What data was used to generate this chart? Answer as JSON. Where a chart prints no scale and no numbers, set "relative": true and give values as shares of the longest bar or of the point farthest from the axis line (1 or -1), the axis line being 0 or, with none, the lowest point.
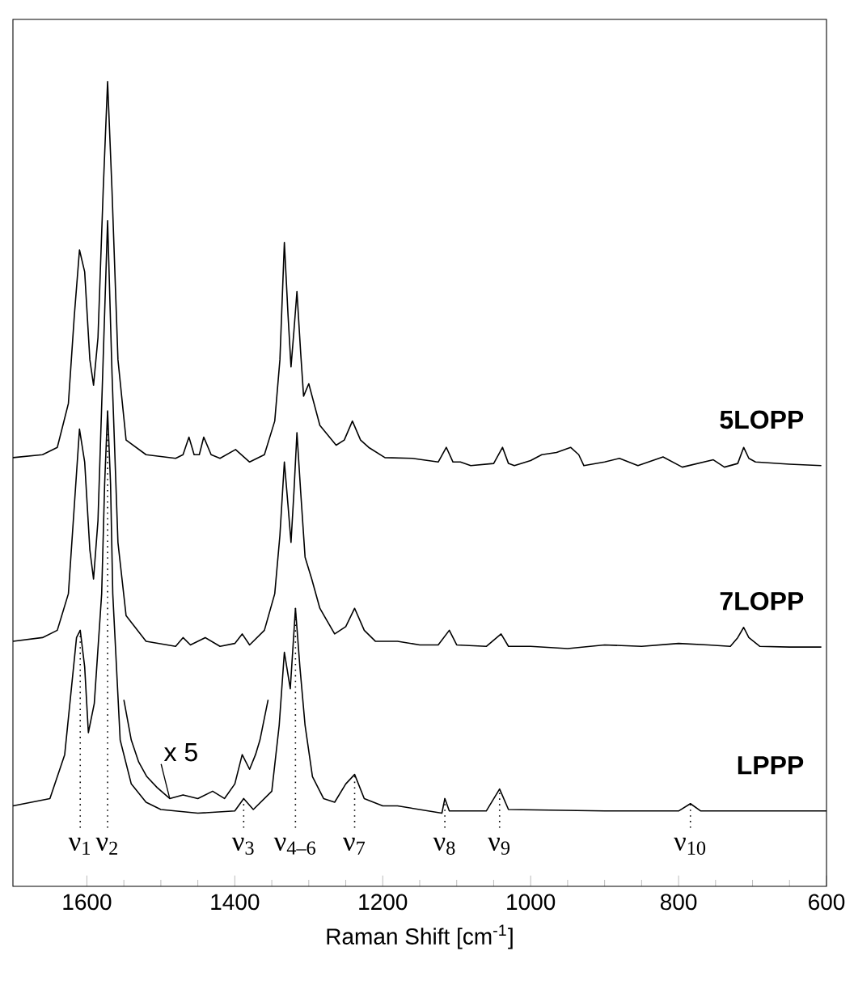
{
  "chart_data": {
    "type": "line",
    "relative": true,
    "xlabel": "Raman Shift [cm$^{-1}$]",
    "xlim": [
      1700,
      600
    ],
    "xticks": [
      1600,
      1400,
      1200,
      1000,
      800,
      600
    ],
    "series": [
      {
        "name": "5LOPP",
        "color": "#000000",
        "x": [
          1700,
          1660,
          1640,
          1625,
          1617,
          1610,
          1603,
          1596,
          1591,
          1585,
          1578,
          1572,
          1566,
          1558,
          1547,
          1520,
          1480,
          1470,
          1462,
          1455,
          1448,
          1442,
          1432,
          1420,
          1399,
          1380,
          1360,
          1346,
          1339,
          1333,
          1328,
          1324,
          1320,
          1316,
          1311,
          1307,
          1300,
          1285,
          1263,
          1252,
          1241,
          1230,
          1219,
          1197,
          1160,
          1125,
          1114,
          1105,
          1095,
          1081,
          1050,
          1038,
          1030,
          1022,
          1000,
          985,
          965,
          946,
          935,
          928,
          900,
          880,
          855,
          821,
          795,
          753,
          738,
          720,
          712,
          705,
          696,
          650,
          607
        ],
        "values": [
          0.486,
          0.49,
          0.5,
          0.56,
          0.68,
          0.77,
          0.74,
          0.62,
          0.585,
          0.65,
          0.85,
          1.0,
          0.85,
          0.62,
          0.51,
          0.49,
          0.485,
          0.49,
          0.514,
          0.49,
          0.49,
          0.514,
          0.49,
          0.485,
          0.497,
          0.48,
          0.49,
          0.536,
          0.62,
          0.78,
          0.68,
          0.61,
          0.66,
          0.713,
          0.63,
          0.57,
          0.587,
          0.53,
          0.503,
          0.51,
          0.536,
          0.51,
          0.5,
          0.486,
          0.485,
          0.48,
          0.5,
          0.48,
          0.48,
          0.475,
          0.478,
          0.5,
          0.478,
          0.475,
          0.482,
          0.49,
          0.493,
          0.5,
          0.49,
          0.475,
          0.48,
          0.485,
          0.475,
          0.487,
          0.473,
          0.483,
          0.473,
          0.478,
          0.5,
          0.485,
          0.48,
          0.477,
          0.475
        ]
      },
      {
        "name": "7LOPP",
        "color": "#000000",
        "x": [
          1700,
          1660,
          1640,
          1625,
          1617,
          1610,
          1603,
          1596,
          1591,
          1585,
          1578,
          1572,
          1566,
          1558,
          1547,
          1520,
          1480,
          1470,
          1460,
          1440,
          1420,
          1400,
          1390,
          1380,
          1360,
          1346,
          1339,
          1333,
          1328,
          1324,
          1320,
          1316,
          1311,
          1305,
          1296,
          1285,
          1265,
          1250,
          1238,
          1225,
          1210,
          1180,
          1150,
          1125,
          1110,
          1100,
          1060,
          1040,
          1030,
          1000,
          950,
          900,
          850,
          800,
          760,
          730,
          720,
          712,
          705,
          690,
          650,
          607
        ],
        "values": [
          0.235,
          0.24,
          0.25,
          0.3,
          0.42,
          0.525,
          0.48,
          0.36,
          0.32,
          0.4,
          0.62,
          0.81,
          0.6,
          0.37,
          0.27,
          0.235,
          0.228,
          0.24,
          0.23,
          0.24,
          0.228,
          0.232,
          0.245,
          0.23,
          0.25,
          0.3,
          0.38,
          0.48,
          0.42,
          0.37,
          0.44,
          0.52,
          0.44,
          0.35,
          0.32,
          0.28,
          0.245,
          0.255,
          0.28,
          0.25,
          0.235,
          0.235,
          0.23,
          0.23,
          0.25,
          0.23,
          0.228,
          0.245,
          0.228,
          0.228,
          0.225,
          0.23,
          0.228,
          0.232,
          0.23,
          0.228,
          0.24,
          0.254,
          0.24,
          0.228,
          0.227,
          0.227
        ]
      },
      {
        "name": "LPPP",
        "color": "#000000",
        "x": [
          1700,
          1650,
          1630,
          1620,
          1614,
          1609,
          1603,
          1598,
          1590,
          1580,
          1576,
          1572,
          1568,
          1565,
          1555,
          1540,
          1520,
          1500,
          1450,
          1400,
          1388,
          1375,
          1350,
          1340,
          1333,
          1325,
          1318,
          1312,
          1305,
          1295,
          1280,
          1265,
          1250,
          1238,
          1225,
          1200,
          1180,
          1120,
          1116,
          1110,
          1100,
          1060,
          1042,
          1030,
          900,
          800,
          784,
          770,
          700,
          600
        ],
        "values": [
          0.01,
          0.02,
          0.08,
          0.18,
          0.24,
          0.25,
          0.2,
          0.11,
          0.15,
          0.3,
          0.45,
          0.55,
          0.45,
          0.3,
          0.1,
          0.04,
          0.015,
          0.005,
          0.0,
          0.003,
          0.02,
          0.005,
          0.03,
          0.12,
          0.22,
          0.17,
          0.28,
          0.2,
          0.12,
          0.05,
          0.02,
          0.015,
          0.04,
          0.053,
          0.02,
          0.01,
          0.01,
          0.0,
          0.02,
          0.003,
          0.003,
          0.003,
          0.033,
          0.005,
          0.003,
          0.003,
          0.013,
          0.003,
          0.003,
          0.003
        ]
      },
      {
        "color": "#000000",
        "x": [
          1550,
          1540,
          1530,
          1519,
          1505,
          1488,
          1470,
          1450,
          1430,
          1414,
          1400,
          1390,
          1380,
          1372,
          1366,
          1360,
          1355
        ],
        "values": [
          0.155,
          0.1,
          0.07,
          0.05,
          0.035,
          0.02,
          0.025,
          0.02,
          0.03,
          0.02,
          0.04,
          0.08,
          0.06,
          0.08,
          0.1,
          0.13,
          0.155
        ]
      }
    ],
    "annotations": [
      {
        "text": "ν$_{1}$",
        "x": 1609,
        "y": 0.25
      },
      {
        "text": "ν$_{2}$",
        "x": 1572,
        "y": 0.55
      },
      {
        "text": "ν$_{3}$",
        "x": 1388,
        "y": 0.02
      },
      {
        "text": "ν$_{4–6}$",
        "x": 1318,
        "y": 0.28
      },
      {
        "text": "ν$_{7}$",
        "x": 1238,
        "y": 0.053
      },
      {
        "text": "ν$_{8}$",
        "x": 1116,
        "y": 0.02
      },
      {
        "text": "ν$_{9}$",
        "x": 1042,
        "y": 0.033
      },
      {
        "text": "ν$_{10}$",
        "x": 784,
        "y": 0.013
      },
      {
        "text": "x 5",
        "x": 1488,
        "y": 0.02
      }
    ]
  }
}
